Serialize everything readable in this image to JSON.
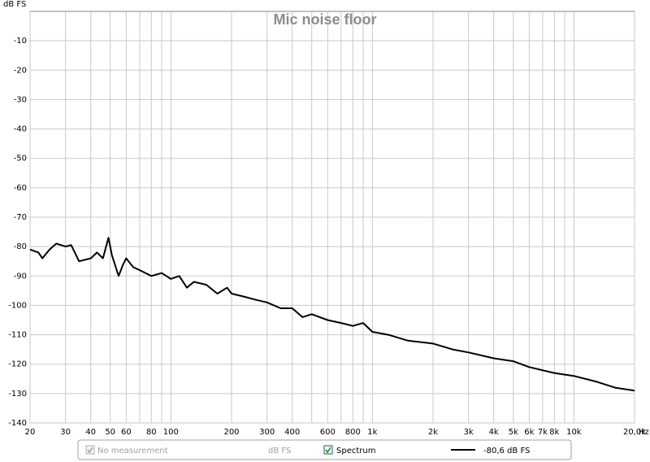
{
  "chart_data": {
    "type": "line",
    "title": "Mic noise floor",
    "ylabel": "dB FS",
    "xlabel": "Hz",
    "xscale": "log",
    "xlim": [
      20,
      20000
    ],
    "ylim": [
      -140,
      0
    ],
    "xticks": [
      20,
      30,
      40,
      50,
      60,
      80,
      100,
      200,
      300,
      400,
      600,
      800,
      {
        "value": 1000,
        "label": "1k"
      },
      {
        "value": 2000,
        "label": "2k"
      },
      {
        "value": 3000,
        "label": "3k"
      },
      {
        "value": 4000,
        "label": "4k"
      },
      {
        "value": 5000,
        "label": "5k"
      },
      {
        "value": 6000,
        "label": "6k"
      },
      {
        "value": 7000,
        "label": "7k"
      },
      {
        "value": 8000,
        "label": "8k"
      },
      {
        "value": 10000,
        "label": "10k"
      },
      {
        "value": 20000,
        "label": "20,0k"
      }
    ],
    "xgrid_minor": [
      70,
      90,
      500,
      700,
      900,
      9000
    ],
    "yticks": [
      -140,
      -130,
      -120,
      -110,
      -100,
      -90,
      -80,
      -70,
      -60,
      -50,
      -40,
      -30,
      -20,
      -10
    ],
    "grid": true,
    "x": [
      20,
      22,
      23,
      25,
      27,
      30,
      32,
      35,
      40,
      43,
      46,
      49,
      51,
      55,
      58,
      60,
      65,
      70,
      80,
      90,
      100,
      110,
      120,
      130,
      150,
      170,
      190,
      200,
      230,
      260,
      300,
      350,
      400,
      450,
      500,
      600,
      700,
      800,
      900,
      1000,
      1200,
      1500,
      2000,
      2500,
      3000,
      4000,
      5000,
      6000,
      8000,
      10000,
      13000,
      16000,
      20000
    ],
    "series": [
      {
        "name": "Spectrum",
        "color": "#000000",
        "values": [
          -81,
          -82,
          -84,
          -81,
          -79,
          -80,
          -79.5,
          -85,
          -84,
          -82,
          -84,
          -77,
          -83,
          -90,
          -86,
          -84,
          -87,
          -88,
          -90,
          -89,
          -91,
          -90,
          -94,
          -92,
          -93,
          -96,
          -94,
          -96,
          -97,
          -98,
          -99,
          -101,
          -101,
          -104,
          -103,
          -105,
          -106,
          -107,
          -106,
          -109,
          -110,
          -112,
          -113,
          -115,
          -116,
          -118,
          -119,
          -121,
          -123,
          -124,
          -126,
          -128,
          -129
        ]
      }
    ],
    "legend": {
      "measurement": "No measurement",
      "unit": "dB FS",
      "readout": "-80,6 dB FS"
    }
  }
}
